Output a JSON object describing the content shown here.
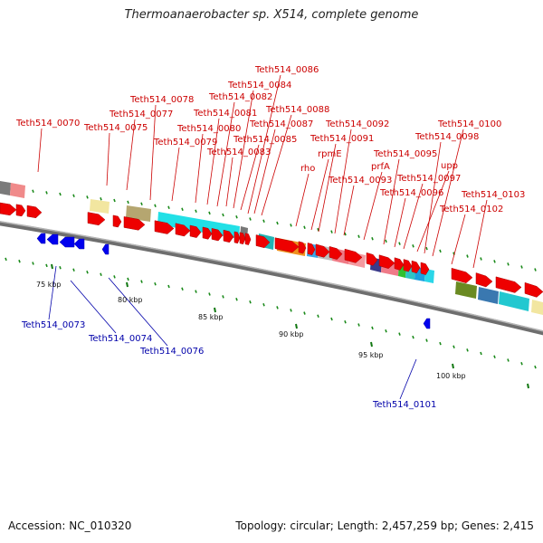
{
  "title": "Thermoanaerobacter sp. X514, complete genome",
  "footer": {
    "accession": "Accession: NC_010320",
    "summary": "Topology: circular; Length: 2,457,259 bp; Genes: 2,415"
  },
  "scale_labels": [
    "75 kbp",
    "80 kbp",
    "85 kbp",
    "90 kbp",
    "95 kbp",
    "100 kbp"
  ],
  "forward_gene_labels": [
    "Teth514_0070",
    "Teth514_0075",
    "Teth514_0077",
    "Teth514_0078",
    "Teth514_0079",
    "Teth514_0080",
    "Teth514_0081",
    "Teth514_0082",
    "Teth514_0083",
    "Teth514_0084",
    "Teth514_0085",
    "Teth514_0086",
    "Teth514_0087",
    "Teth514_0088",
    "rho",
    "rpmE",
    "Teth514_0091",
    "Teth514_0092",
    "Teth514_0093",
    "prfA",
    "Teth514_0095",
    "Teth514_0096",
    "Teth514_0097",
    "upp",
    "Teth514_0098",
    "Teth514_0100",
    "Teth514_0102",
    "Teth514_0103"
  ],
  "reverse_gene_labels": [
    "Teth514_0073",
    "Teth514_0074",
    "Teth514_0076",
    "Teth514_0101"
  ],
  "colors": {
    "forward": "#ee0000",
    "reverse": "#0000ee",
    "backbone": "#8a8a8a",
    "tick": "#1a8a1a"
  }
}
